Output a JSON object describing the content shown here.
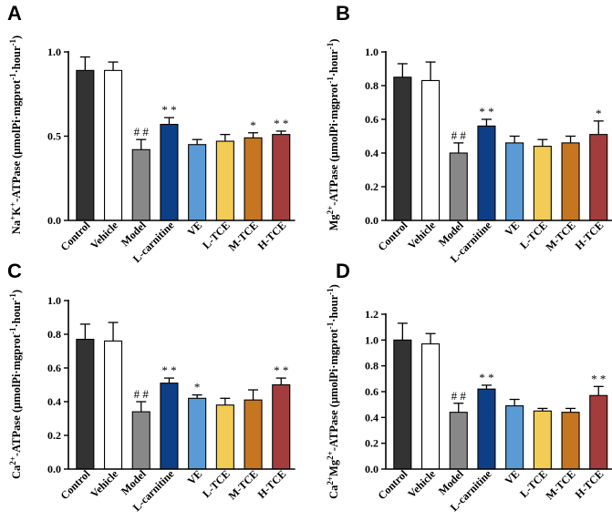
{
  "chart_data": [
    {
      "type": "bar",
      "panel": "A",
      "ylabel_parts": [
        "Na",
        "+",
        "K",
        "+",
        "-ATPase (μmolPi·mgprot",
        "-1",
        "·hour",
        "-1",
        ")"
      ],
      "ylim": [
        0,
        1.0
      ],
      "yticks": [
        "0.0",
        "0.5",
        "1.0"
      ],
      "categories": [
        "Control",
        "Vehicle",
        "Model",
        "L-carnitine",
        "VE",
        "L-TCE",
        "M-TCE",
        "H-TCE"
      ],
      "values": [
        0.89,
        0.89,
        0.42,
        0.57,
        0.45,
        0.47,
        0.49,
        0.51
      ],
      "errors": [
        0.08,
        0.05,
        0.06,
        0.04,
        0.03,
        0.04,
        0.03,
        0.02
      ],
      "annotations": [
        "",
        "",
        "# #",
        "* *",
        "",
        "",
        "*",
        "* *"
      ]
    },
    {
      "type": "bar",
      "panel": "B",
      "ylabel_parts": [
        "Mg",
        "2+",
        "-ATPase (μmolPi·mgprot",
        "-1",
        "·hour",
        "-1",
        ")"
      ],
      "ylim": [
        0,
        1.0
      ],
      "yticks": [
        "0.0",
        "0.2",
        "0.4",
        "0.6",
        "0.8",
        "1.0"
      ],
      "categories": [
        "Control",
        "Vehicle",
        "Model",
        "L-carnitine",
        "VE",
        "L-TCE",
        "M-TCE",
        "H-TCE"
      ],
      "values": [
        0.85,
        0.83,
        0.4,
        0.56,
        0.46,
        0.44,
        0.46,
        0.51
      ],
      "errors": [
        0.08,
        0.11,
        0.06,
        0.04,
        0.04,
        0.04,
        0.04,
        0.08
      ],
      "annotations": [
        "",
        "",
        "# #",
        "* *",
        "",
        "",
        "",
        "*"
      ]
    },
    {
      "type": "bar",
      "panel": "C",
      "ylabel_parts": [
        "Ca",
        "2+",
        "-ATPase (μmolPi·mgprot",
        "-1",
        "·hour",
        "-1",
        ")"
      ],
      "ylim": [
        0,
        1.0
      ],
      "yticks": [
        "0.0",
        "0.2",
        "0.4",
        "0.6",
        "0.8",
        "1.0"
      ],
      "categories": [
        "Control",
        "Vehicle",
        "Model",
        "L-carnitine",
        "VE",
        "L-TCE",
        "M-TCE",
        "H-TCE"
      ],
      "values": [
        0.77,
        0.76,
        0.34,
        0.51,
        0.42,
        0.38,
        0.41,
        0.5
      ],
      "errors": [
        0.09,
        0.11,
        0.06,
        0.03,
        0.02,
        0.04,
        0.06,
        0.04
      ],
      "annotations": [
        "",
        "",
        "# #",
        "* *",
        "*",
        "",
        "",
        "* *"
      ]
    },
    {
      "type": "bar",
      "panel": "D",
      "ylabel_parts": [
        "Ca",
        "2+",
        "Mg",
        "2+",
        "-ATPase (μmolPi·mgprot",
        "-1",
        "·hour",
        "-1",
        ")"
      ],
      "ylim": [
        0,
        1.2
      ],
      "yticks": [
        "0.0",
        "0.2",
        "0.4",
        "0.6",
        "0.8",
        "1.0",
        "1.2"
      ],
      "categories": [
        "Control",
        "Vehicle",
        "Model",
        "L-carnitine",
        "VE",
        "L-TCE",
        "M-TCE",
        "H-TCE"
      ],
      "values": [
        1.0,
        0.97,
        0.44,
        0.62,
        0.49,
        0.45,
        0.44,
        0.57
      ],
      "errors": [
        0.13,
        0.08,
        0.07,
        0.03,
        0.05,
        0.02,
        0.03,
        0.07
      ],
      "annotations": [
        "",
        "",
        "# #",
        "* *",
        "",
        "",
        "",
        "* *"
      ]
    }
  ],
  "bar_colors": [
    "#333333",
    "#ffffff",
    "#888888",
    "#0d3f86",
    "#5a9bd5",
    "#f2cc55",
    "#c67520",
    "#a33d3d"
  ]
}
